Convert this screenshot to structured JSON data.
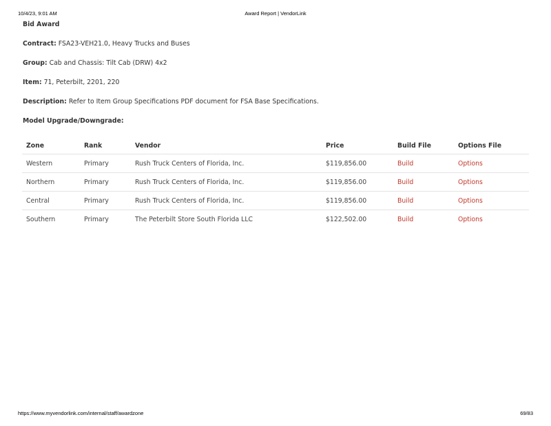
{
  "print_header": {
    "datetime": "10/4/23, 9:01 AM",
    "title": "Award Report | VendorLink"
  },
  "heading": "Bid Award",
  "fields": [
    {
      "label": "Contract:",
      "value": "FSA23-VEH21.0, Heavy Trucks and Buses"
    },
    {
      "label": "Group:",
      "value": "Cab and Chassis: Tilt Cab (DRW) 4x2"
    },
    {
      "label": "Item:",
      "value": "71, Peterbilt, 2201, 220"
    },
    {
      "label": "Description:",
      "value": "Refer to Item Group Specifications PDF document for FSA Base Specifications."
    }
  ],
  "model_label": "Model Upgrade/Downgrade:",
  "table": {
    "headers": [
      "Zone",
      "Rank",
      "Vendor",
      "Price",
      "Build File",
      "Options File"
    ],
    "rows": [
      [
        "Western",
        "Primary",
        "Rush Truck Centers of Florida, Inc.",
        "$119,856.00",
        "Build",
        "Options"
      ],
      [
        "Northern",
        "Primary",
        "Rush Truck Centers of Florida, Inc.",
        "$119,856.00",
        "Build",
        "Options"
      ],
      [
        "Central",
        "Primary",
        "Rush Truck Centers of Florida, Inc.",
        "$119,856.00",
        "Build",
        "Options"
      ],
      [
        "Southern",
        "Primary",
        "The Peterbilt Store South Florida LLC",
        "$122,502.00",
        "Build",
        "Options"
      ]
    ]
  },
  "link_color": "#c0392b",
  "print_footer": {
    "url": "https://www.myvendorlink.com/internal/staff/awardzone",
    "page": "69/83"
  }
}
